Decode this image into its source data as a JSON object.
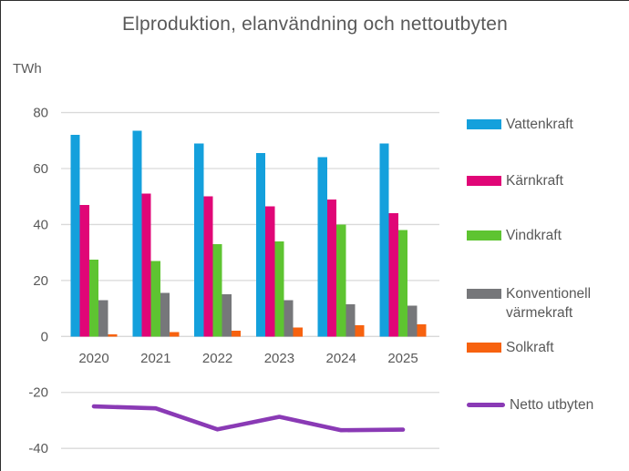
{
  "title": "Elproduktion, elanvändning och nettoutbyten",
  "chart_data": {
    "type": "bar",
    "title": "Elproduktion, elanvändning och nettoutbyten",
    "ylabel": "TWh",
    "xlabel": "",
    "ylim": [
      -40,
      80
    ],
    "yticks": [
      80,
      60,
      40,
      20,
      0,
      -20,
      -40
    ],
    "grid": true,
    "legend_position": "right",
    "gridline_color": "#D9D9D9",
    "text_color": "#595959",
    "categories": [
      "2020",
      "2021",
      "2022",
      "2023",
      "2024",
      "2025"
    ],
    "series": [
      {
        "name": "Vattenkraft",
        "type": "bar",
        "color": "#14A0DC",
        "values": [
          72,
          73.5,
          69,
          65.5,
          64,
          69
        ]
      },
      {
        "name": "Kärnkraft",
        "type": "bar",
        "color": "#E00677",
        "values": [
          47,
          51,
          50,
          46.5,
          49,
          44
        ]
      },
      {
        "name": "Vindkraft",
        "type": "bar",
        "color": "#5EC431",
        "values": [
          27.5,
          27,
          33,
          34,
          40,
          38
        ]
      },
      {
        "name": "Konventionell värmekraft",
        "type": "bar",
        "color": "#76777A",
        "values": [
          13,
          15.5,
          15,
          13,
          11.5,
          11
        ]
      },
      {
        "name": "Solkraft",
        "type": "bar",
        "color": "#F7620F",
        "values": [
          0.8,
          1.5,
          2,
          3.2,
          4,
          4.3
        ]
      },
      {
        "name": "Netto utbyten",
        "type": "line",
        "color": "#8A3AB5",
        "values": [
          -25,
          -25.7,
          -33.2,
          -28.7,
          -33.5,
          -33.3
        ]
      }
    ]
  }
}
